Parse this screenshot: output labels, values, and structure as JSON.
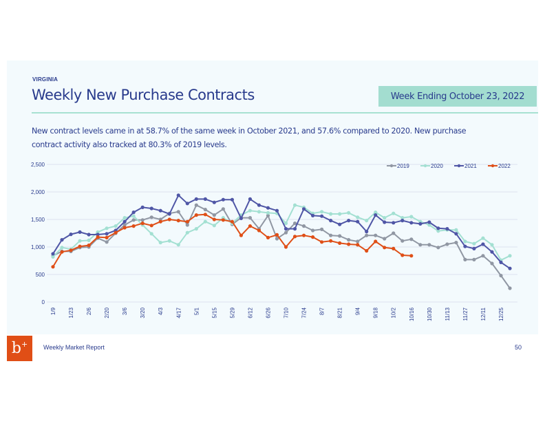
{
  "header": {
    "region": "VIRGINIA",
    "title": "Weekly New Purchase Contracts",
    "week_badge": "Week Ending October 23, 2022"
  },
  "summary": "New contract levels came in at 58.7% of the same week in October 2021, and 57.6% compared to 2020. New purchase contract activity also tracked at 80.3% of 2019 levels.",
  "footer": {
    "logo_glyph": "b",
    "report_name": "Weekly Market Report",
    "page_number": "50"
  },
  "colors": {
    "2019": "#9097a3",
    "2020": "#a3e0d2",
    "2021": "#4f56a6",
    "2022": "#df4f17",
    "text": "#283a8c",
    "grid": "#dde3f0"
  },
  "chart_data": {
    "type": "line",
    "title": "",
    "xlabel": "",
    "ylabel": "",
    "ylim": [
      0,
      2500
    ],
    "yticks": [
      0,
      500,
      1000,
      1500,
      2000,
      2500
    ],
    "ytick_labels": [
      "0",
      "500",
      "1,000",
      "1,500",
      "2,000",
      "2,500"
    ],
    "grid": true,
    "legend_position": "top-right",
    "x_tick_labels": [
      "1/9",
      "1/23",
      "2/6",
      "2/20",
      "3/6",
      "3/20",
      "4/3",
      "4/17",
      "5/1",
      "5/15",
      "5/29",
      "6/12",
      "6/26",
      "7/10",
      "7/24",
      "8/7",
      "8/21",
      "9/4",
      "9/18",
      "10/2",
      "10/16",
      "10/30",
      "11/13",
      "11/27",
      "12/11",
      "12/25"
    ],
    "x_tick_every": 2,
    "num_weeks": 52,
    "series": [
      {
        "name": "2019",
        "values": [
          840,
          920,
          920,
          990,
          1000,
          1160,
          1090,
          1250,
          1400,
          1490,
          1490,
          1540,
          1500,
          1610,
          1640,
          1400,
          1760,
          1680,
          1580,
          1690,
          1410,
          1530,
          1530,
          1330,
          1570,
          1150,
          1260,
          1430,
          1380,
          1300,
          1320,
          1210,
          1200,
          1130,
          1100,
          1210,
          1210,
          1150,
          1250,
          1110,
          1140,
          1040,
          1040,
          990,
          1050,
          1080,
          770,
          770,
          840,
          700,
          480,
          250
        ]
      },
      {
        "name": "2020",
        "values": [
          820,
          990,
          960,
          1110,
          1120,
          1270,
          1340,
          1380,
          1530,
          1560,
          1400,
          1240,
          1080,
          1110,
          1040,
          1260,
          1330,
          1460,
          1390,
          1530,
          1430,
          1580,
          1660,
          1640,
          1620,
          1610,
          1430,
          1760,
          1720,
          1610,
          1640,
          1600,
          1600,
          1620,
          1540,
          1480,
          1630,
          1530,
          1610,
          1530,
          1550,
          1460,
          1400,
          1290,
          1310,
          1310,
          1100,
          1060,
          1160,
          1040,
          760,
          840
        ]
      },
      {
        "name": "2021",
        "values": [
          876,
          1130,
          1230,
          1270,
          1225,
          1225,
          1240,
          1300,
          1460,
          1630,
          1720,
          1700,
          1660,
          1600,
          1940,
          1790,
          1870,
          1870,
          1810,
          1860,
          1860,
          1520,
          1870,
          1760,
          1710,
          1660,
          1330,
          1330,
          1690,
          1570,
          1560,
          1480,
          1410,
          1480,
          1460,
          1280,
          1580,
          1450,
          1440,
          1480,
          1440,
          1420,
          1450,
          1340,
          1330,
          1240,
          1010,
          970,
          1050,
          910,
          720,
          610
        ]
      },
      {
        "name": "2022",
        "values": [
          640,
          910,
          940,
          1010,
          1030,
          1180,
          1170,
          1260,
          1350,
          1380,
          1430,
          1390,
          1460,
          1500,
          1480,
          1460,
          1580,
          1590,
          1500,
          1490,
          1460,
          1210,
          1380,
          1300,
          1170,
          1220,
          1000,
          1190,
          1210,
          1180,
          1090,
          1110,
          1070,
          1050,
          1040,
          930,
          1100,
          990,
          970,
          850,
          840
        ]
      }
    ]
  }
}
